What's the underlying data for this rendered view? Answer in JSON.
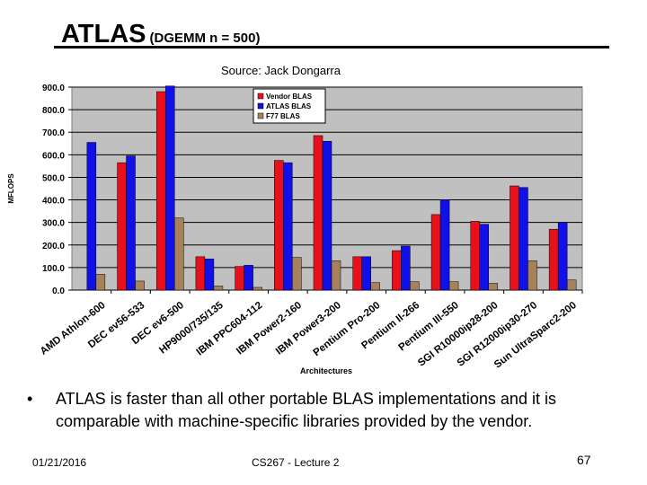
{
  "slide": {
    "title_main": "ATLAS",
    "title_sub": "(DGEMM n = 500)",
    "source": "Source: Jack Dongarra",
    "bullet_marker": "•",
    "bullet": "ATLAS is faster than all other portable BLAS implementations and it is comparable with machine-specific libraries provided by the vendor.",
    "footer_date": "01/21/2016",
    "footer_center": "CS267 - Lecture 2",
    "page_number": "67"
  },
  "colors": {
    "vendor": "#e8101a",
    "atlas": "#1010e8",
    "f77": "#a5825a",
    "plot_bg": "#c0c0c0"
  },
  "chart_data": {
    "type": "bar",
    "xlabel": "Architectures",
    "ylabel": "MFLOPS",
    "ylim": [
      0,
      900
    ],
    "yticks": [
      "0.0",
      "100.0",
      "200.0",
      "300.0",
      "400.0",
      "500.0",
      "600.0",
      "700.0",
      "800.0",
      "900.0"
    ],
    "legend_position": "top-right",
    "categories": [
      "AMD Athlon-600",
      "DEC ev56-533",
      "DEC ev6-500",
      "HP9000/735/135",
      "IBM PPC604-112",
      "IBM Power2-160",
      "IBM Power3-200",
      "Pentium Pro-200",
      "Pentium II-266",
      "Pentium III-550",
      "SGI R10000ip28-200",
      "SGI R12000ip30-270",
      "Sun UltraSparc2-200"
    ],
    "series": [
      {
        "name": "Vendor BLAS",
        "values": [
          null,
          565,
          880,
          148,
          105,
          575,
          685,
          148,
          175,
          335,
          305,
          462,
          270
        ]
      },
      {
        "name": "ATLAS BLAS",
        "values": [
          655,
          595,
          905,
          138,
          110,
          565,
          660,
          148,
          195,
          400,
          292,
          455,
          300
        ]
      },
      {
        "name": "F77 BLAS",
        "values": [
          70,
          40,
          320,
          18,
          12,
          145,
          130,
          33,
          37,
          37,
          30,
          130,
          45
        ]
      }
    ]
  }
}
